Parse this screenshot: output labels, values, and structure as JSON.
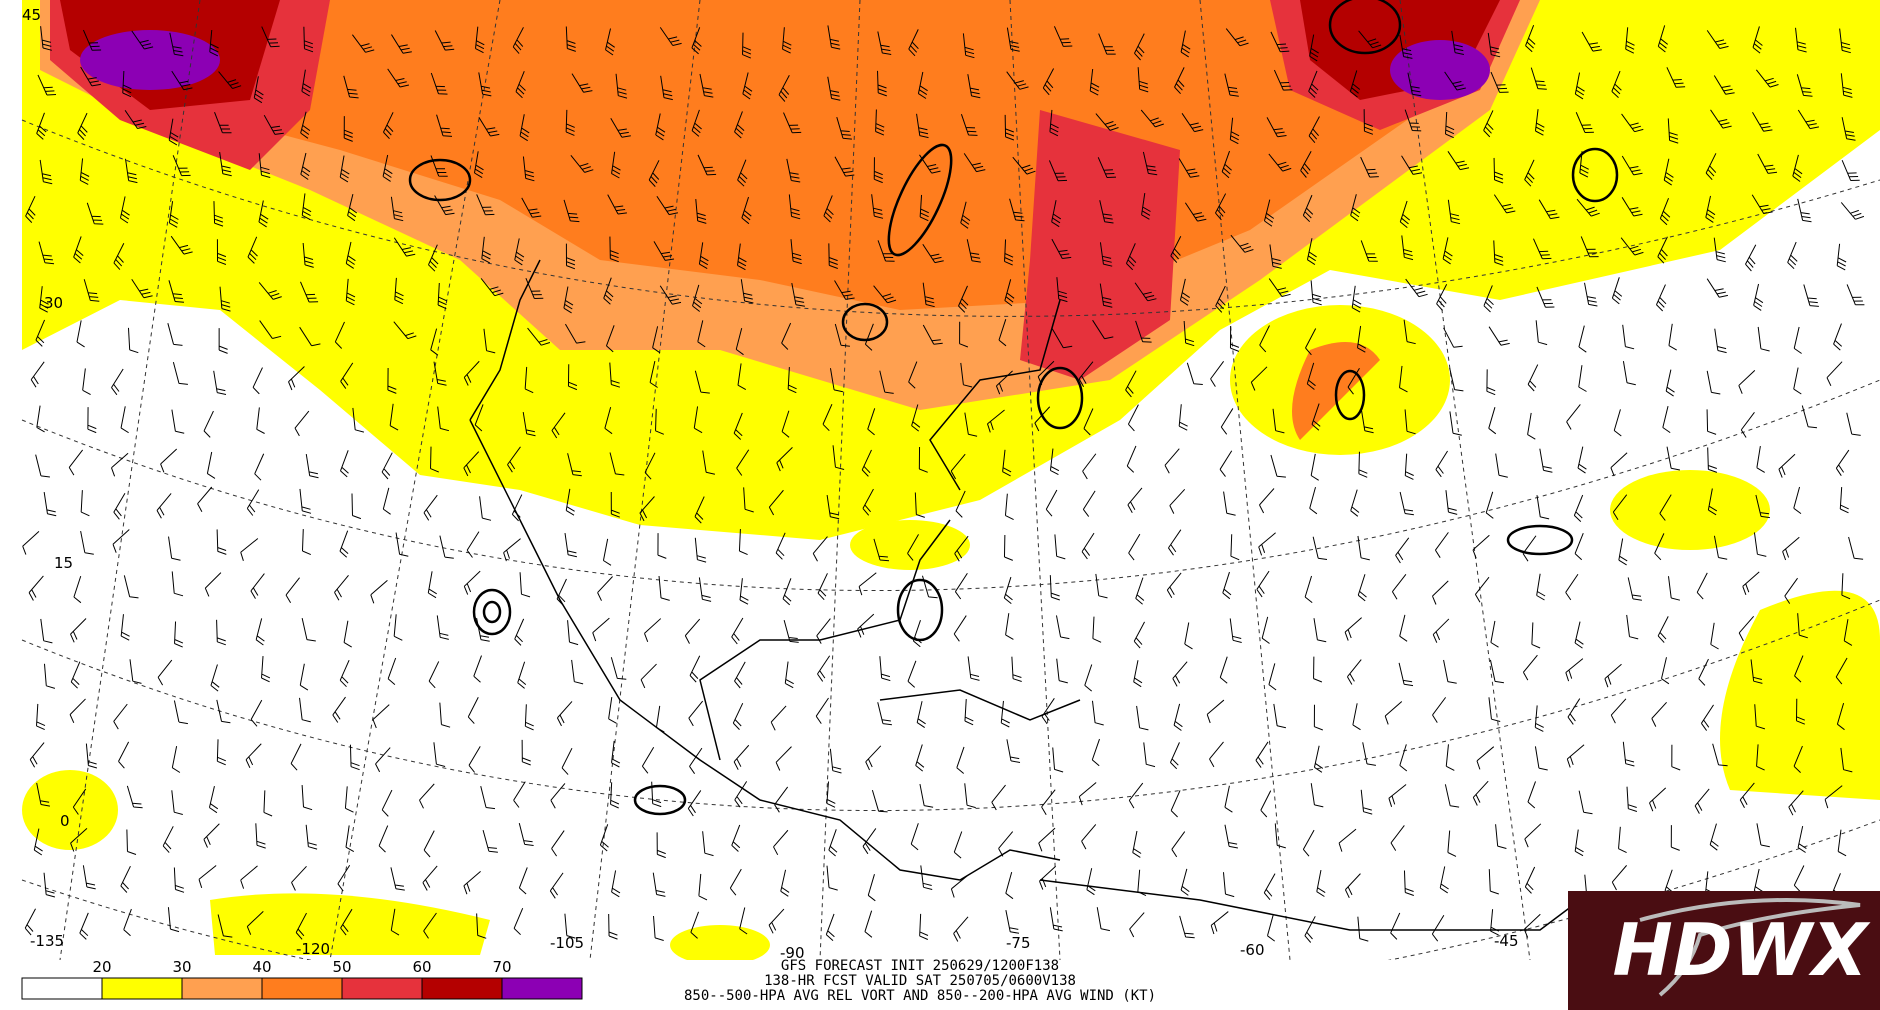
{
  "map": {
    "lat_labels": [
      "45",
      "30",
      "15",
      "0"
    ],
    "lon_labels": [
      "-135",
      "-120",
      "-105",
      "-90",
      "-75",
      "-60",
      "-45"
    ]
  },
  "colorbar": {
    "labels": [
      "20",
      "30",
      "40",
      "50",
      "60",
      "70"
    ],
    "colors": [
      "#ffffff",
      "#ffff00",
      "#ffa050",
      "#ff7d1e",
      "#e6323c",
      "#b40000",
      "#8c00b4"
    ]
  },
  "caption": {
    "lines": [
      "GFS FORECAST INIT 250629/1200F138",
      "138-HR FCST VALID SAT 250705/0600V138",
      "850--500-HPA AVG REL VORT AND 850--200-HPA AVG WIND (KT)"
    ]
  },
  "logo": {
    "text": "HDWX"
  }
}
